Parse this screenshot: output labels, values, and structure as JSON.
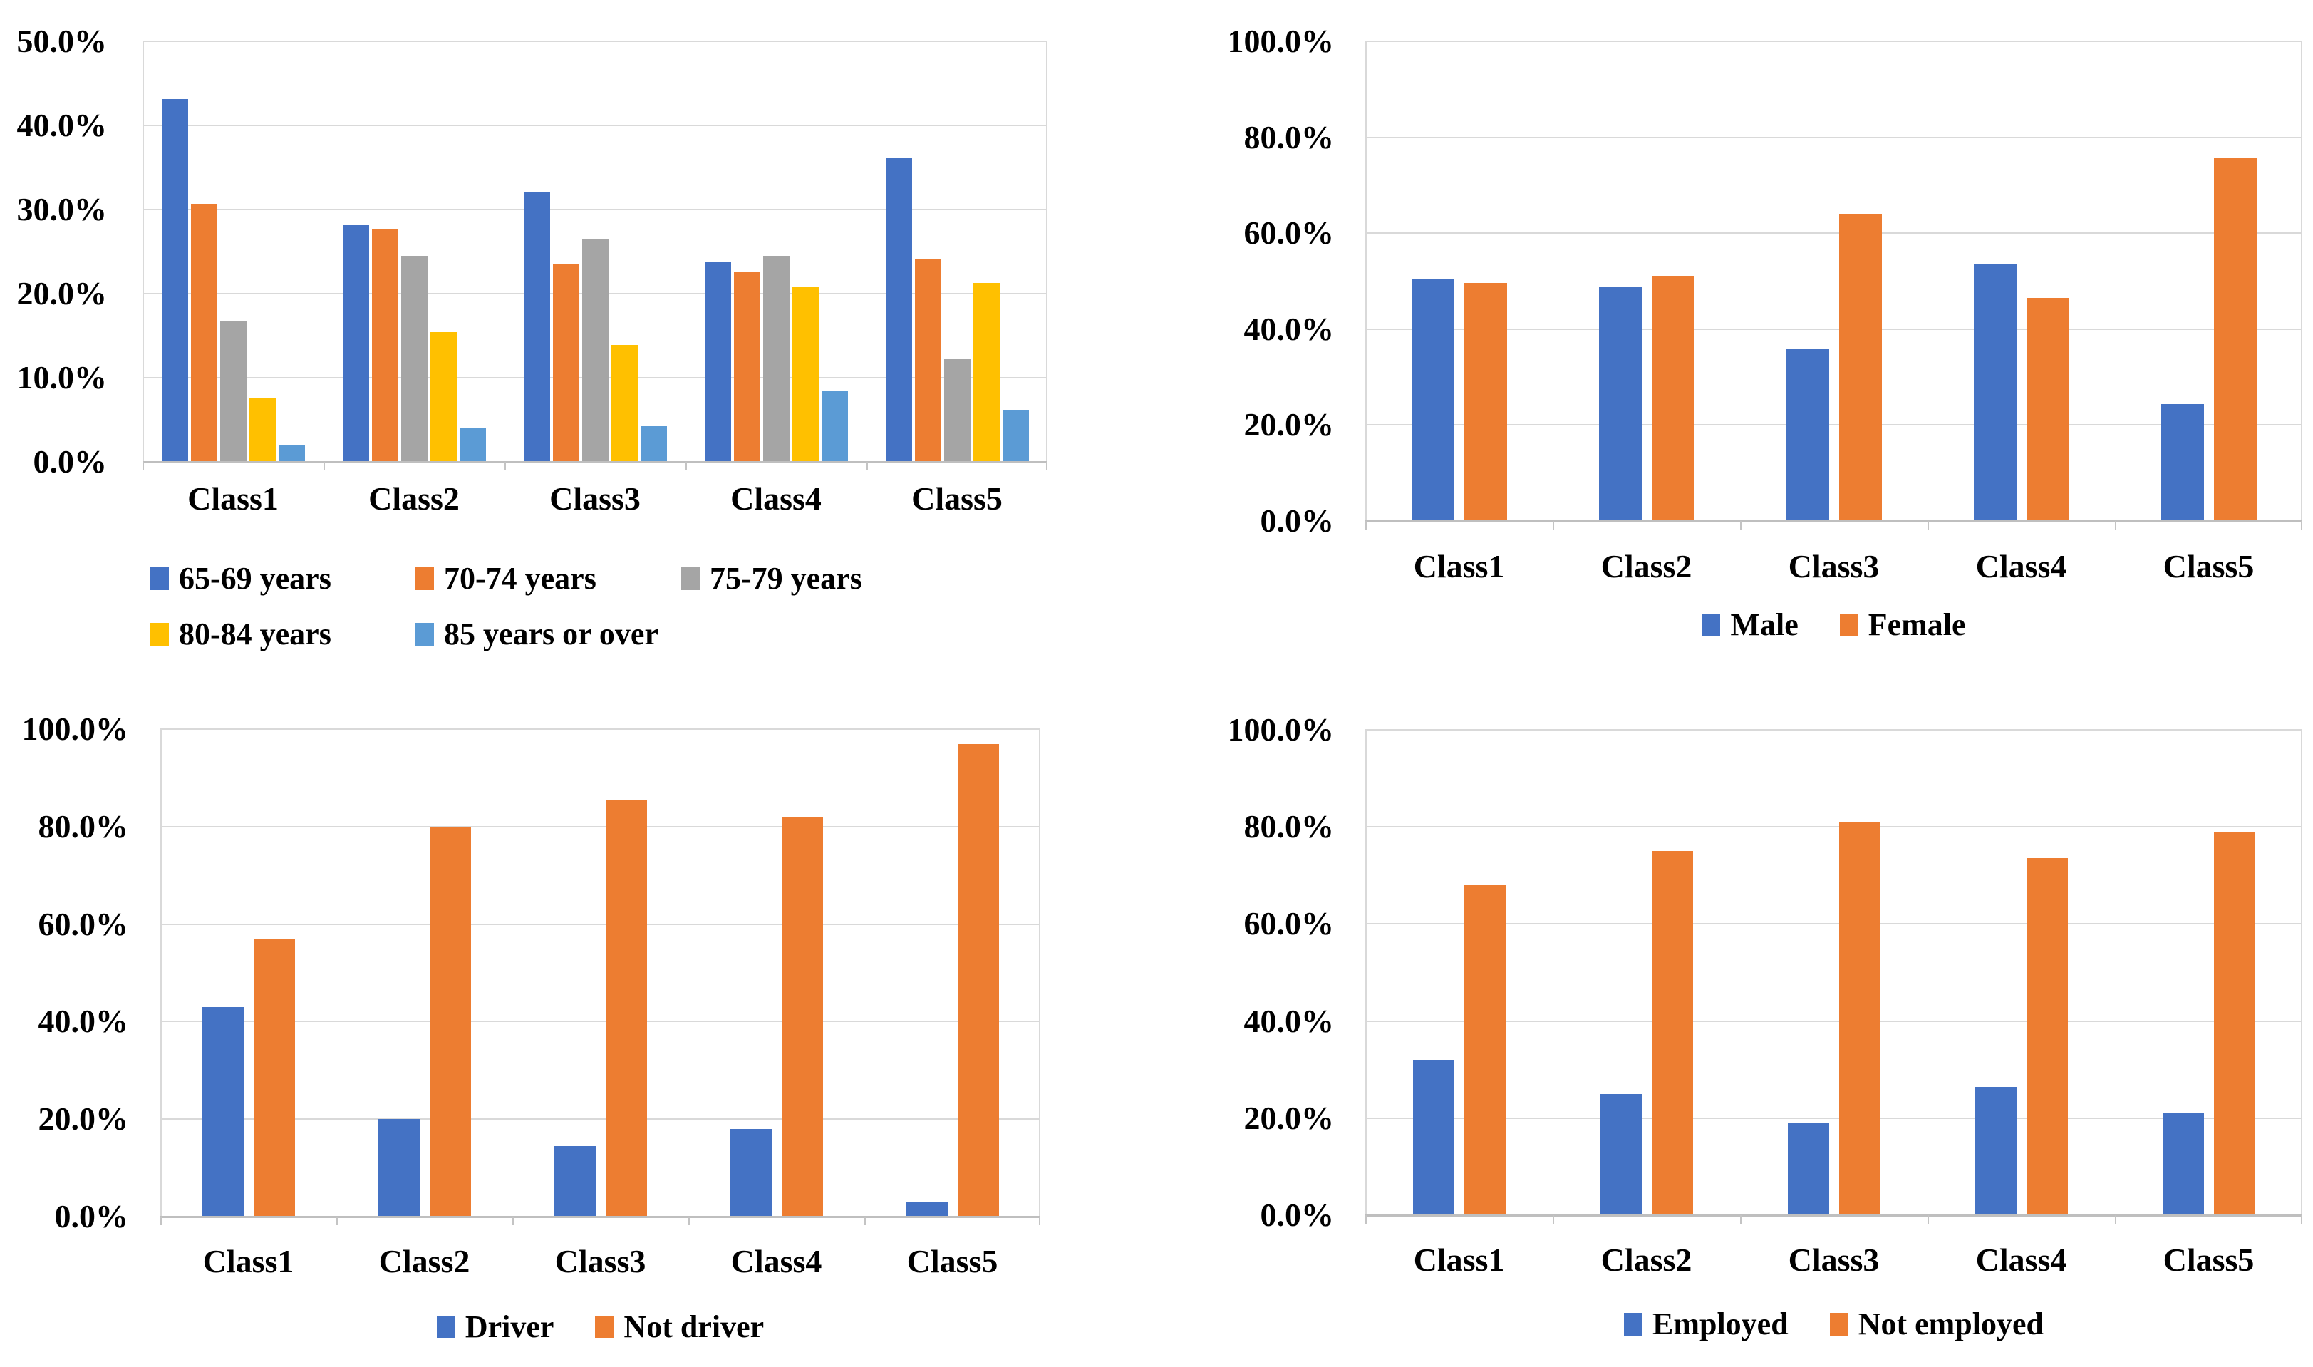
{
  "figure": {
    "type": "2x2 grid of clustered bar charts",
    "background": "#ffffff",
    "grid_color": "#d9d9d9",
    "axis_color": "#bfbfbf",
    "text_color": "#000000"
  },
  "chart_data": [
    {
      "type": "bar",
      "name": "age-distribution-by-class",
      "categories": [
        "Class1",
        "Class2",
        "Class3",
        "Class4",
        "Class5"
      ],
      "series": [
        {
          "name": "65-69 years",
          "color": "#4472C4",
          "values": [
            43.1,
            28.1,
            32.0,
            23.7,
            36.2
          ]
        },
        {
          "name": "70-74 years",
          "color": "#ED7D31",
          "values": [
            30.7,
            27.7,
            23.5,
            22.6,
            24.1
          ]
        },
        {
          "name": "75-79 years",
          "color": "#A5A5A5",
          "values": [
            16.8,
            24.5,
            26.4,
            24.5,
            12.2
          ]
        },
        {
          "name": "80-84 years",
          "color": "#FFC000",
          "values": [
            7.5,
            15.4,
            13.9,
            20.8,
            21.3
          ]
        },
        {
          "name": "85 years or over",
          "color": "#5B9BD5",
          "values": [
            2.0,
            4.0,
            4.2,
            8.5,
            6.2
          ]
        }
      ],
      "title": "",
      "xlabel": "",
      "ylabel": "",
      "ylim": [
        0,
        50
      ],
      "y_tick_labels": [
        "50.0%",
        "40.0%",
        "30.0%",
        "20.0%",
        "10.0%",
        "0.0%"
      ],
      "grid": "horizontal",
      "legend_position": "bottom-left-two-rows"
    },
    {
      "type": "bar",
      "name": "gender-by-class",
      "categories": [
        "Class1",
        "Class2",
        "Class3",
        "Class4",
        "Class5"
      ],
      "series": [
        {
          "name": "Male",
          "color": "#4472C4",
          "values": [
            50.4,
            48.9,
            36.0,
            53.5,
            24.3
          ]
        },
        {
          "name": "Female",
          "color": "#ED7D31",
          "values": [
            49.6,
            51.1,
            64.0,
            46.5,
            75.7
          ]
        }
      ],
      "title": "",
      "xlabel": "",
      "ylabel": "",
      "ylim": [
        0,
        100
      ],
      "y_tick_labels": [
        "100.0%",
        "80.0%",
        "60.0%",
        "40.0%",
        "20.0%",
        "0.0%"
      ],
      "grid": "horizontal",
      "legend_position": "bottom-center"
    },
    {
      "type": "bar",
      "name": "driver-status-by-class",
      "categories": [
        "Class1",
        "Class2",
        "Class3",
        "Class4",
        "Class5"
      ],
      "series": [
        {
          "name": "Driver",
          "color": "#4472C4",
          "values": [
            43.0,
            20.0,
            14.5,
            18.0,
            3.0
          ]
        },
        {
          "name": "Not driver",
          "color": "#ED7D31",
          "values": [
            57.0,
            80.0,
            85.5,
            82.0,
            97.0
          ]
        }
      ],
      "title": "",
      "xlabel": "",
      "ylabel": "",
      "ylim": [
        0,
        100
      ],
      "y_tick_labels": [
        "100.0%",
        "80.0%",
        "60.0%",
        "40.0%",
        "20.0%",
        "0.0%"
      ],
      "grid": "horizontal",
      "legend_position": "bottom-center"
    },
    {
      "type": "bar",
      "name": "employment-status-by-class",
      "categories": [
        "Class1",
        "Class2",
        "Class3",
        "Class4",
        "Class5"
      ],
      "series": [
        {
          "name": "Employed",
          "color": "#4472C4",
          "values": [
            32.0,
            25.0,
            19.0,
            26.5,
            21.0
          ]
        },
        {
          "name": "Not employed",
          "color": "#ED7D31",
          "values": [
            68.0,
            75.0,
            81.0,
            73.5,
            79.0
          ]
        }
      ],
      "title": "",
      "xlabel": "",
      "ylabel": "",
      "ylim": [
        0,
        100
      ],
      "y_tick_labels": [
        "100.0%",
        "80.0%",
        "60.0%",
        "40.0%",
        "20.0%",
        "0.0%"
      ],
      "grid": "horizontal",
      "legend_position": "bottom-center"
    }
  ]
}
